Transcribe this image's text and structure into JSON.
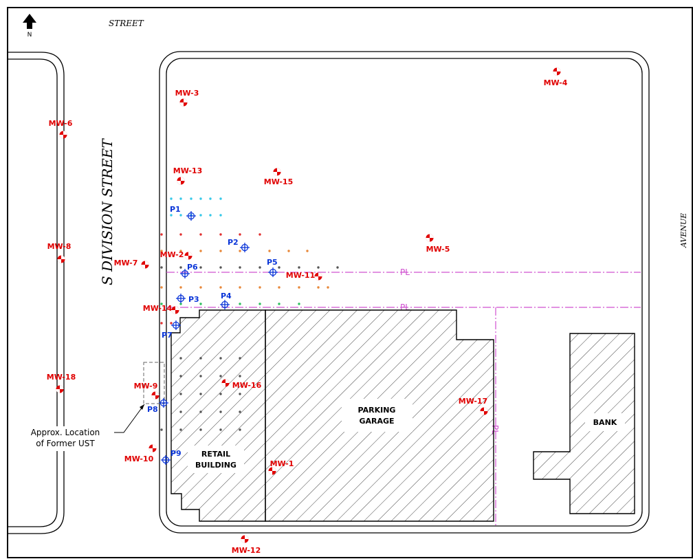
{
  "north_arrow": {
    "label": "N"
  },
  "streets": {
    "top": "STREET",
    "left": "S DIVISION STREET",
    "right": "AVENUE"
  },
  "buildings": {
    "retail": [
      "RETAIL",
      "BUILDING"
    ],
    "parking": [
      "PARKING",
      "GARAGE"
    ],
    "bank": "BANK"
  },
  "ust_note": [
    "Approx. Location",
    "of Former UST"
  ],
  "property_line_symbol": "PL",
  "monitoring_wells": [
    {
      "id": "MW-1"
    },
    {
      "id": "MW-2"
    },
    {
      "id": "MW-3"
    },
    {
      "id": "MW-4"
    },
    {
      "id": "MW-5"
    },
    {
      "id": "MW-6"
    },
    {
      "id": "MW-7"
    },
    {
      "id": "MW-8"
    },
    {
      "id": "MW-9"
    },
    {
      "id": "MW-10"
    },
    {
      "id": "MW-11"
    },
    {
      "id": "MW-12"
    },
    {
      "id": "MW-13"
    },
    {
      "id": "MW-14"
    },
    {
      "id": "MW-15"
    },
    {
      "id": "MW-16"
    },
    {
      "id": "MW-17"
    },
    {
      "id": "MW-18"
    }
  ],
  "probes": [
    {
      "id": "P1"
    },
    {
      "id": "P2"
    },
    {
      "id": "P3"
    },
    {
      "id": "P4"
    },
    {
      "id": "P5"
    },
    {
      "id": "P6"
    },
    {
      "id": "P7"
    },
    {
      "id": "P8"
    },
    {
      "id": "P9"
    }
  ],
  "colors": {
    "wells": "#e00000",
    "probes": "#0a35d8",
    "property_line": "#d050d0",
    "grid_cyan": "#35c8e8",
    "grid_red": "#e03030",
    "grid_dark": "#555555",
    "grid_orange": "#e8883a",
    "grid_green": "#30c060"
  }
}
